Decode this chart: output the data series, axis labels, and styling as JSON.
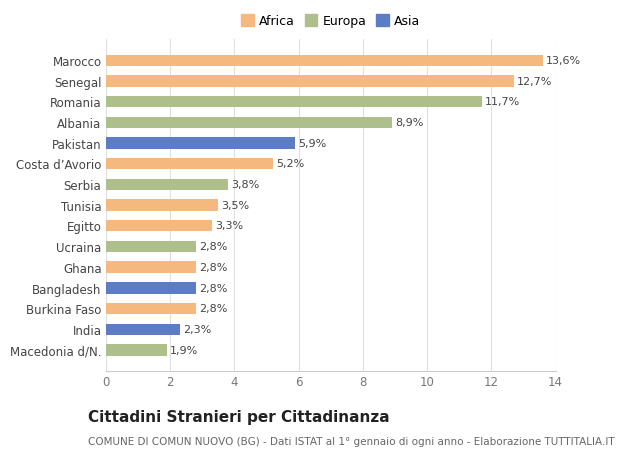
{
  "countries": [
    "Macedonia d/N.",
    "India",
    "Burkina Faso",
    "Bangladesh",
    "Ghana",
    "Ucraina",
    "Egitto",
    "Tunisia",
    "Serbia",
    "Costa d’Avorio",
    "Pakistan",
    "Albania",
    "Romania",
    "Senegal",
    "Marocco"
  ],
  "values": [
    1.9,
    2.3,
    2.8,
    2.8,
    2.8,
    2.8,
    3.3,
    3.5,
    3.8,
    5.2,
    5.9,
    8.9,
    11.7,
    12.7,
    13.6
  ],
  "continents": [
    "Europa",
    "Asia",
    "Africa",
    "Asia",
    "Africa",
    "Europa",
    "Africa",
    "Africa",
    "Europa",
    "Africa",
    "Asia",
    "Europa",
    "Europa",
    "Africa",
    "Africa"
  ],
  "colors": {
    "Africa": "#F5B97F",
    "Europa": "#AEBF8C",
    "Asia": "#5C7DC4"
  },
  "title": "Cittadini Stranieri per Cittadinanza",
  "subtitle": "COMUNE DI COMUN NUOVO (BG) - Dati ISTAT al 1° gennaio di ogni anno - Elaborazione TUTTITALIA.IT",
  "xlim": [
    0,
    14
  ],
  "xticks": [
    0,
    2,
    4,
    6,
    8,
    10,
    12,
    14
  ],
  "background_color": "#ffffff",
  "bar_height": 0.55,
  "label_fontsize": 8,
  "tick_fontsize": 8.5,
  "ytick_fontsize": 8.5,
  "title_fontsize": 11,
  "subtitle_fontsize": 7.5,
  "legend_fontsize": 9
}
